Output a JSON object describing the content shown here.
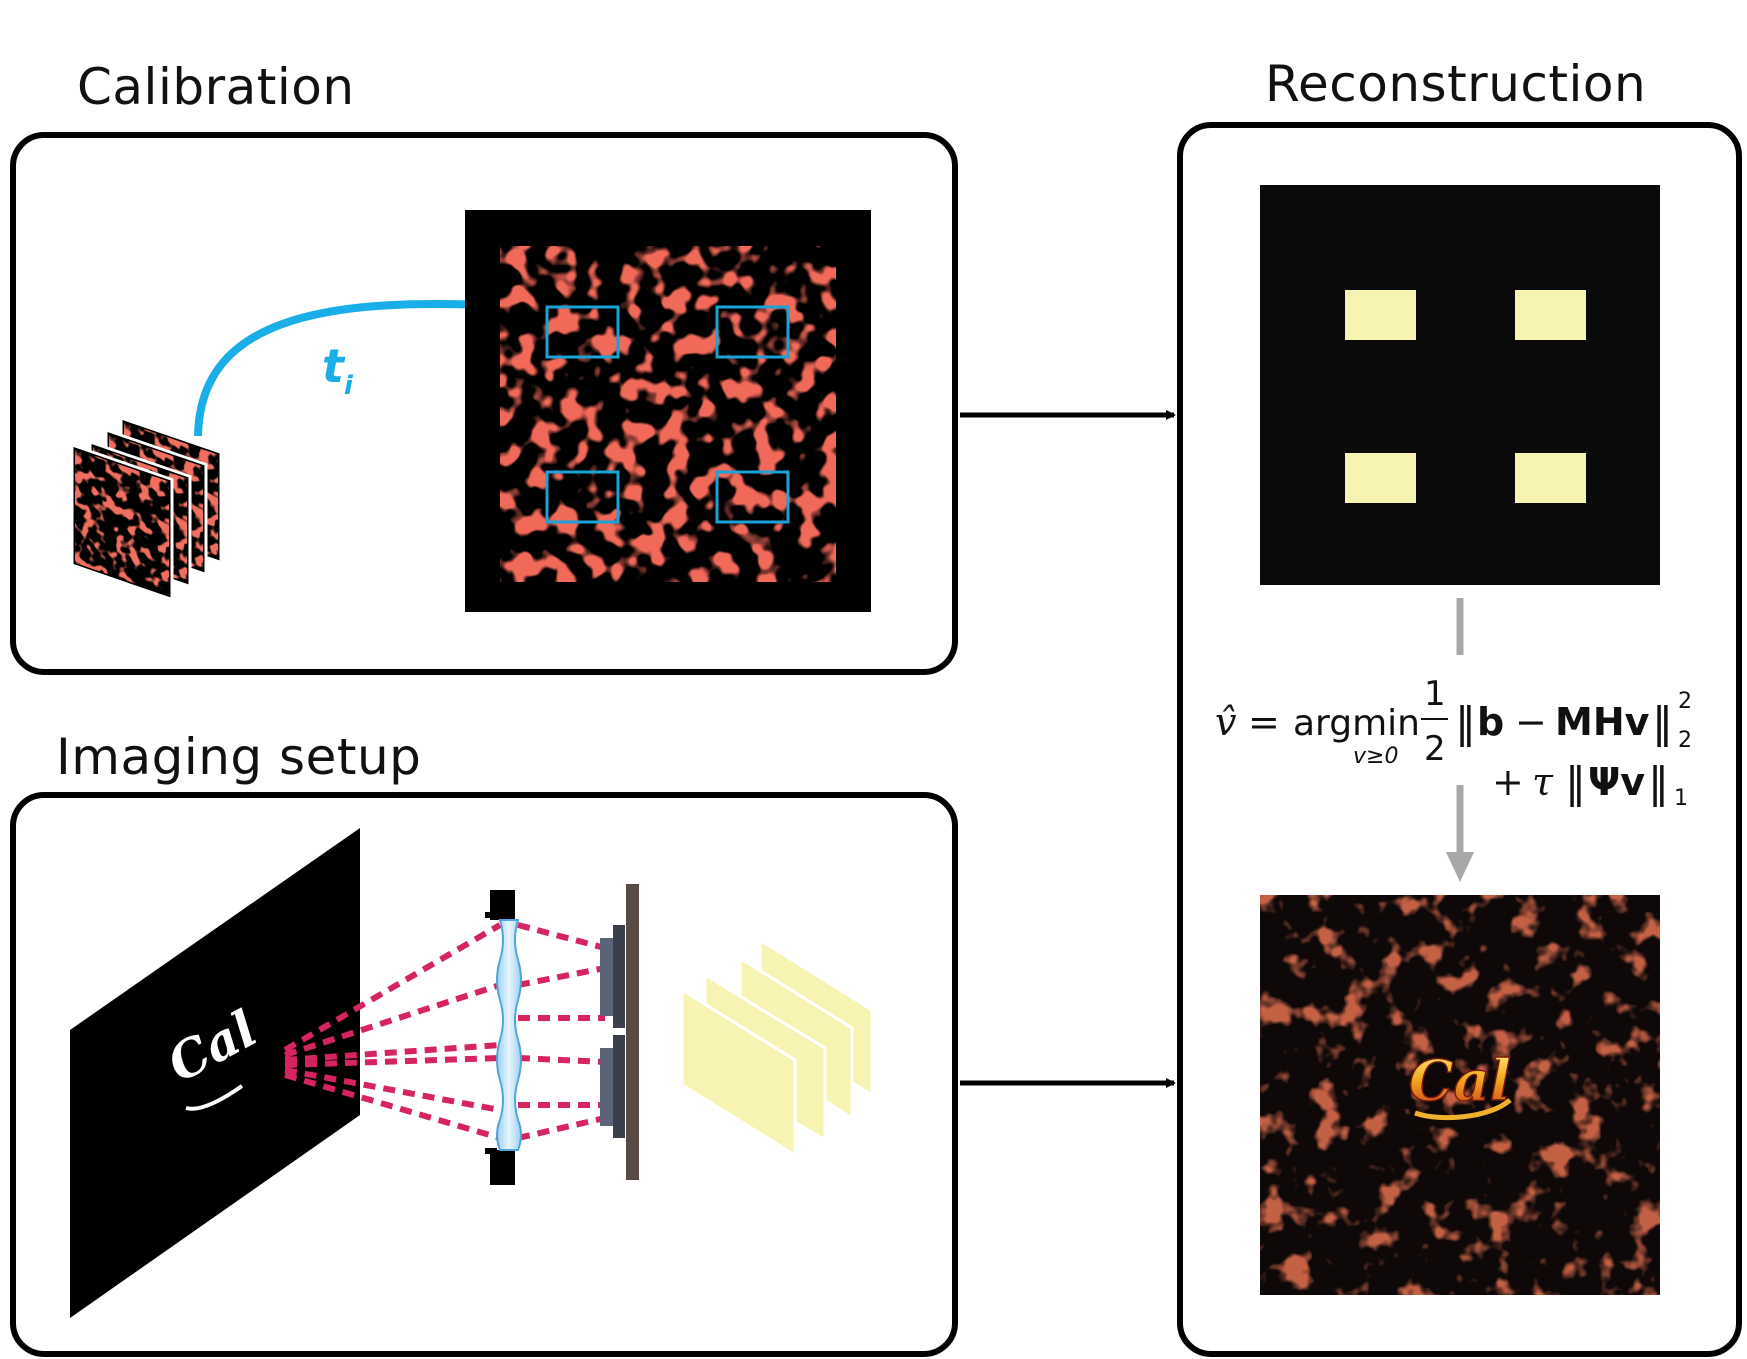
{
  "headings": {
    "calibration": "Calibration",
    "imaging_setup": "Imaging setup",
    "reconstruction": "Reconstruction"
  },
  "calibration": {
    "shift_label_main": "t",
    "shift_label_sub": "i"
  },
  "reconstruction": {
    "formula": {
      "lhs": "v̂",
      "equals": "=",
      "operator": "argmin",
      "operator_sub": "v≥0",
      "frac_num": "1",
      "frac_den": "2",
      "norm_open": "‖",
      "b": "b",
      "minus": "−",
      "MHv": "MHv",
      "norm_close": "‖",
      "sup2": "2",
      "sub2": "2",
      "plus": "+",
      "tau": "τ",
      "Psi_v": "Ψv",
      "sub1": "1"
    },
    "scene_text": "Cal"
  },
  "imaging_setup": {
    "object_text": "Cal"
  },
  "colors": {
    "caustic_red": "#e0281e",
    "roi_blue": "#1aa3d8",
    "arrow_blue": "#1aaee8",
    "ray_magenta": "#d6245e",
    "yellow_patch": "#f7f3b3",
    "gray_arrow": "#a8a8a8",
    "sensor_brown": "#5a4a44",
    "sensor_blue": "#5b6378"
  }
}
